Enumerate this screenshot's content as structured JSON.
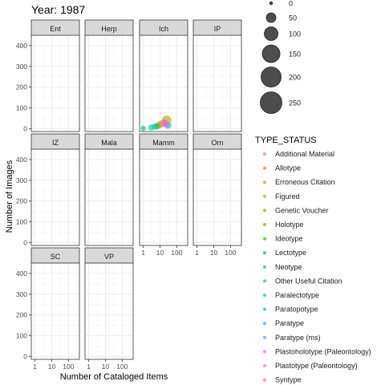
{
  "chart_data": {
    "type": "scatter",
    "title": "Year: 1987",
    "xlabel": "Number of Cataloged Items",
    "ylabel": "Number of Images",
    "x_scale": "log10",
    "x_ticks": [
      "1",
      "10",
      "100"
    ],
    "y_ticks": [
      "0",
      "100",
      "200",
      "300",
      "400"
    ],
    "ylim": [
      0,
      450
    ],
    "grid": true,
    "legend_position": "right",
    "facets": [
      "Ent",
      "Herp",
      "Ich",
      "IP",
      "IZ",
      "Mala",
      "Mamm",
      "Orn",
      "SC",
      "VP"
    ],
    "size_legend": {
      "title": "",
      "values": [
        "0",
        "50",
        "100",
        "150",
        "200",
        "250"
      ]
    },
    "color_legend": {
      "title": "TYPE_STATUS",
      "entries": [
        {
          "label": "Additional Material",
          "color": "#F8766D"
        },
        {
          "label": "Allotype",
          "color": "#EA8331"
        },
        {
          "label": "Erroneous Citation",
          "color": "#D89000"
        },
        {
          "label": "Figured",
          "color": "#C09B00"
        },
        {
          "label": "Genetic Voucher",
          "color": "#A3A500"
        },
        {
          "label": "Holotype",
          "color": "#7CAE00"
        },
        {
          "label": "Ideotype",
          "color": "#39B600"
        },
        {
          "label": "Lectotype",
          "color": "#00BB4E"
        },
        {
          "label": "Neotype",
          "color": "#00BF7D"
        },
        {
          "label": "Other Useful Citation",
          "color": "#00C1A3"
        },
        {
          "label": "Paralectotype",
          "color": "#00BFC4"
        },
        {
          "label": "Paratopotype",
          "color": "#00BAE0"
        },
        {
          "label": "Paratype",
          "color": "#00B0F6"
        },
        {
          "label": "Paratype (ms)",
          "color": "#35A2FF"
        },
        {
          "label": "Plastoholotype (Paleontology)",
          "color": "#E76BF3"
        },
        {
          "label": "Plastotype (Paleontology)",
          "color": "#F564E3"
        },
        {
          "label": "Syntype",
          "color": "#FF61C3"
        }
      ]
    },
    "points": [
      {
        "facet": "Ich",
        "status": "Neotype",
        "x": 1,
        "y": 2,
        "size": 8
      },
      {
        "facet": "Ich",
        "status": "Other Useful Citation",
        "x": 3,
        "y": 6,
        "size": 12
      },
      {
        "facet": "Ich",
        "status": "Paralectotype",
        "x": 5,
        "y": 10,
        "size": 15
      },
      {
        "facet": "Ich",
        "status": "Lectotype",
        "x": 7,
        "y": 12,
        "size": 14
      },
      {
        "facet": "Ich",
        "status": "Holotype",
        "x": 10,
        "y": 20,
        "size": 20
      },
      {
        "facet": "Ich",
        "status": "Additional Material",
        "x": 15,
        "y": 25,
        "size": 22
      },
      {
        "facet": "Ich",
        "status": "Genetic Voucher",
        "x": 25,
        "y": 40,
        "size": 40
      },
      {
        "facet": "Ich",
        "status": "Paratype",
        "x": 30,
        "y": 15,
        "size": 15
      },
      {
        "facet": "Ich",
        "status": "Plastotype (Paleontology)",
        "x": 22,
        "y": 18,
        "size": 12
      },
      {
        "facet": "Ich",
        "status": "Syntype",
        "x": 20,
        "y": 30,
        "size": 10
      }
    ]
  }
}
